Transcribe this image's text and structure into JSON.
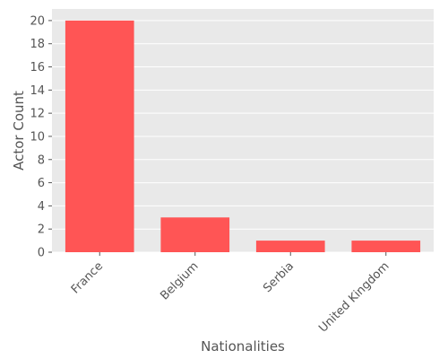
{
  "chart_data": {
    "type": "bar",
    "title": "",
    "xlabel": "Nationalities",
    "ylabel": "Actor Count",
    "categories": [
      "France",
      "Belgium",
      "Serbia",
      "United Kingdom"
    ],
    "values": [
      20,
      3,
      1,
      1
    ],
    "ylim": [
      0,
      21
    ],
    "yticks": [
      0,
      2,
      4,
      6,
      8,
      10,
      12,
      14,
      16,
      18,
      20
    ],
    "grid": true,
    "legend": "none",
    "colors": {
      "bar": "#ff5555",
      "plot_background": "#e9e9e9",
      "grid": "#ffffff",
      "text": "#555555"
    }
  }
}
